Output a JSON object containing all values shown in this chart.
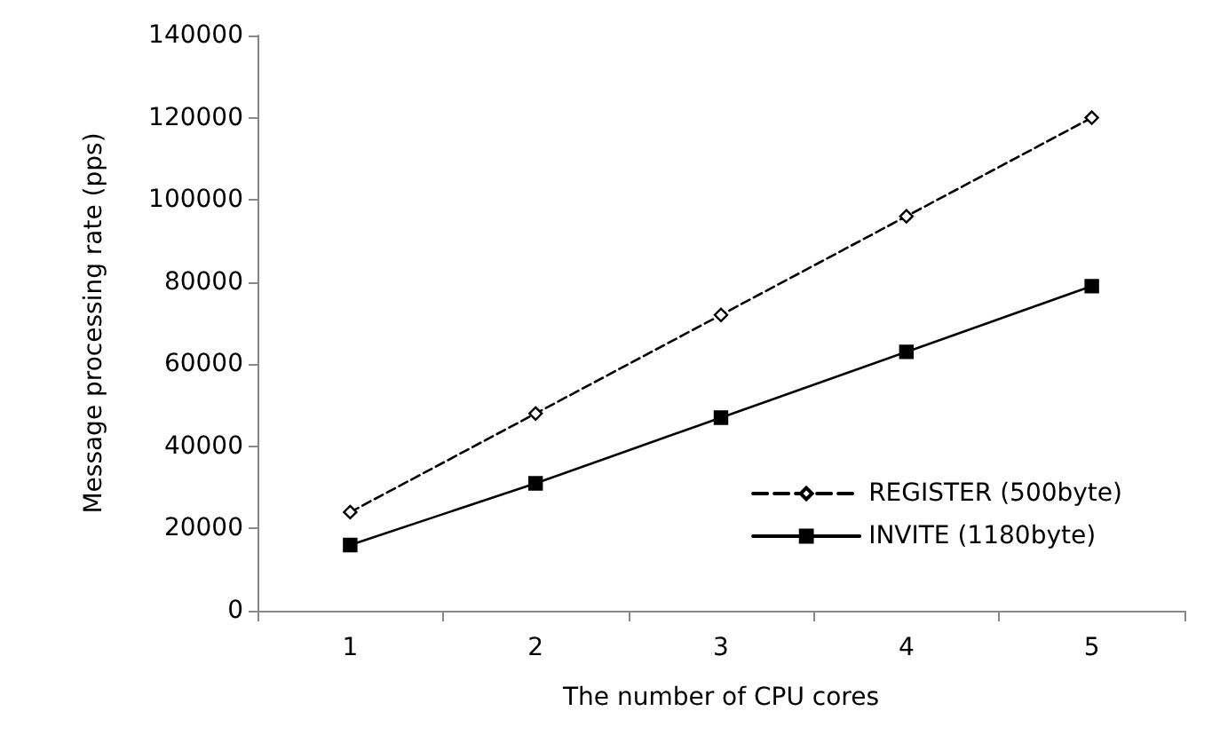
{
  "chart_data": {
    "type": "line",
    "xlabel": "The number of CPU cores",
    "ylabel": "Message processing rate (pps)",
    "categories": [
      "1",
      "2",
      "3",
      "4",
      "5"
    ],
    "series": [
      {
        "name": "REGISTER (500byte)",
        "color": "#000000",
        "values": [
          24000,
          48000,
          72000,
          96000,
          120000
        ],
        "marker": "diamond",
        "line_style": "dashed"
      },
      {
        "name": "INVITE (1180byte)",
        "color": "#000000",
        "values": [
          16000,
          31000,
          47000,
          63000,
          79000
        ],
        "marker": "square",
        "line_style": "solid"
      }
    ],
    "ylim": [
      0,
      140000
    ],
    "yticks": [
      0,
      20000,
      40000,
      60000,
      80000,
      100000,
      120000,
      140000
    ],
    "grid": false,
    "legend": "bottom right"
  }
}
